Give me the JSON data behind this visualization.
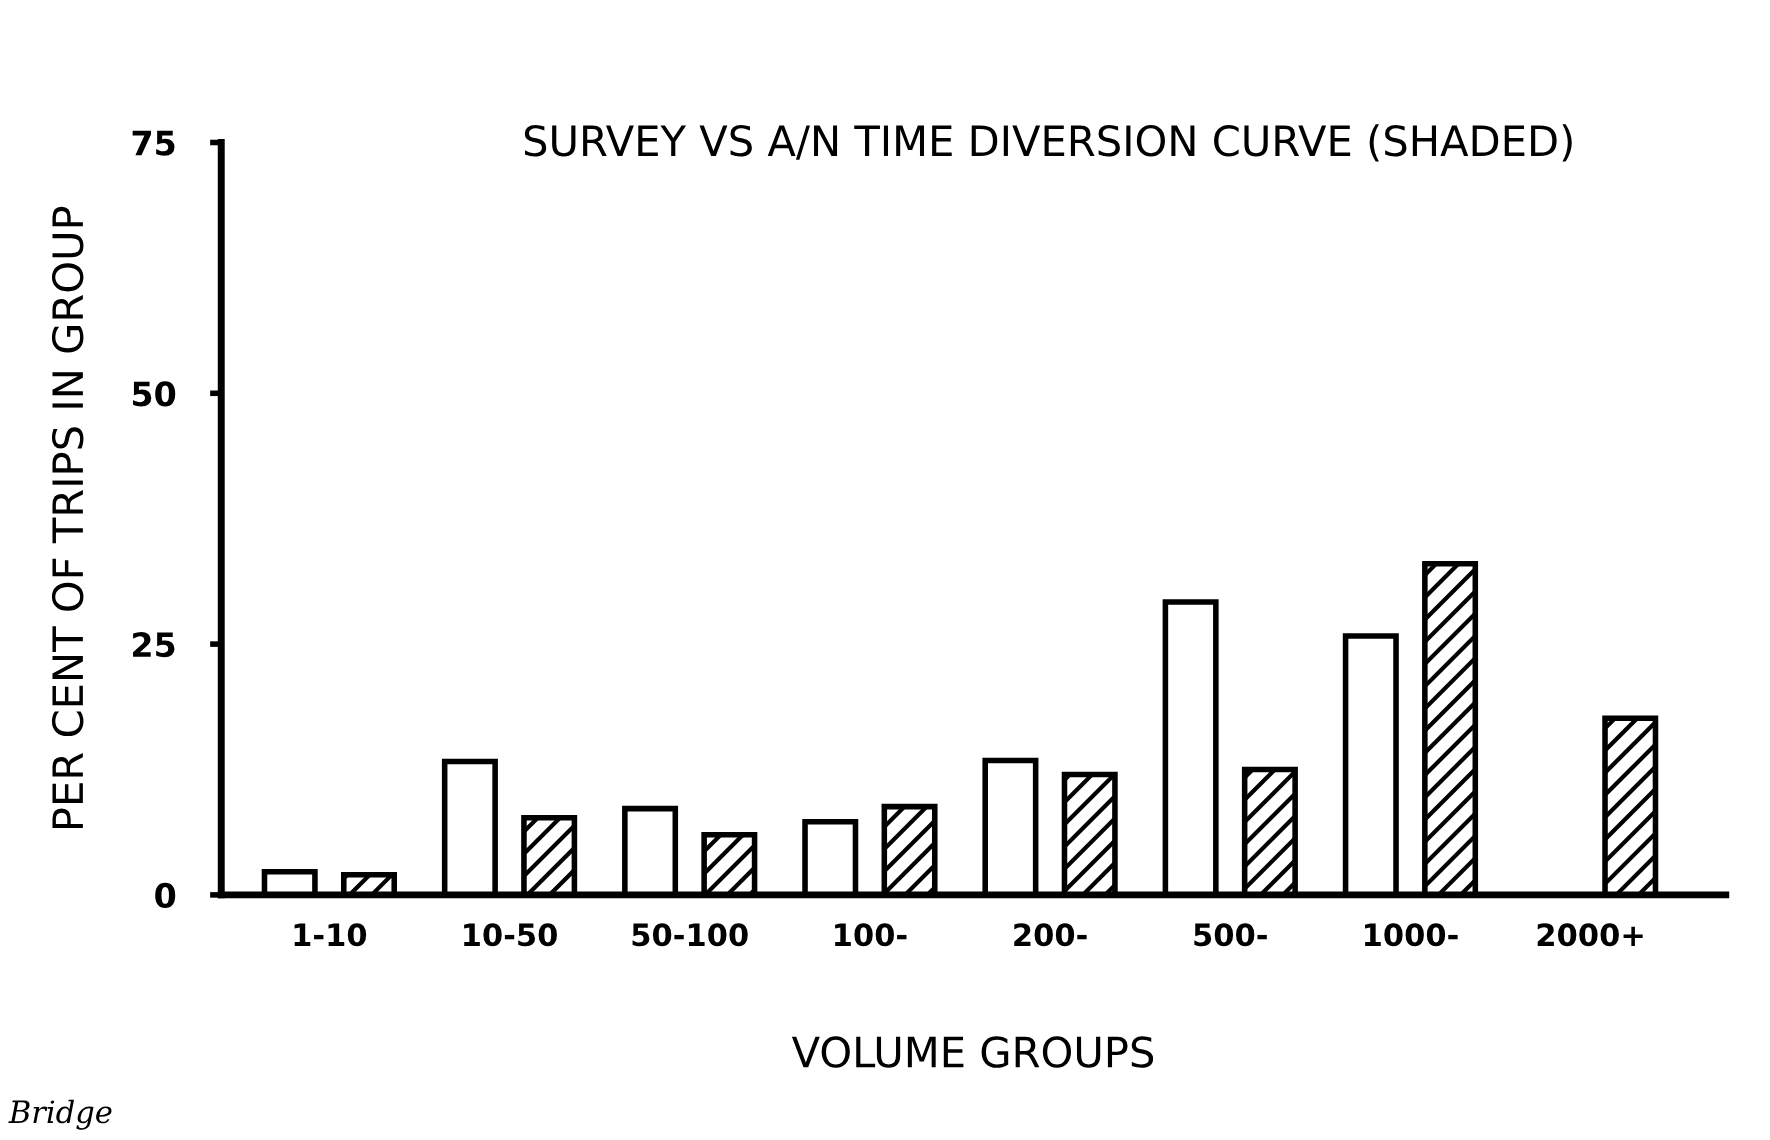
{
  "chart_data": {
    "type": "bar",
    "title": "SURVEY VS A/N TIME DIVERSION CURVE (SHADED)",
    "xlabel": "VOLUME GROUPS",
    "ylabel": "PER CENT OF TRIPS IN GROUP",
    "categories": [
      "1-10",
      "10-50",
      "50-100",
      "100-",
      "200-",
      "500-",
      "1000-",
      "2000+"
    ],
    "series": [
      {
        "color": "#ffffff",
        "values": [
          2.3,
          13.3,
          8.6,
          7.3,
          13.4,
          29.2,
          25.8,
          null
        ]
      },
      {
        "color": "#000000",
        "values": [
          2.0,
          7.7,
          6.0,
          8.8,
          12.0,
          12.5,
          33.0,
          17.6
        ]
      }
    ],
    "ylim": [
      0,
      75
    ],
    "yticks": [
      0,
      25,
      50,
      75
    ],
    "grid": false,
    "annotations": [
      "Bridge"
    ]
  }
}
